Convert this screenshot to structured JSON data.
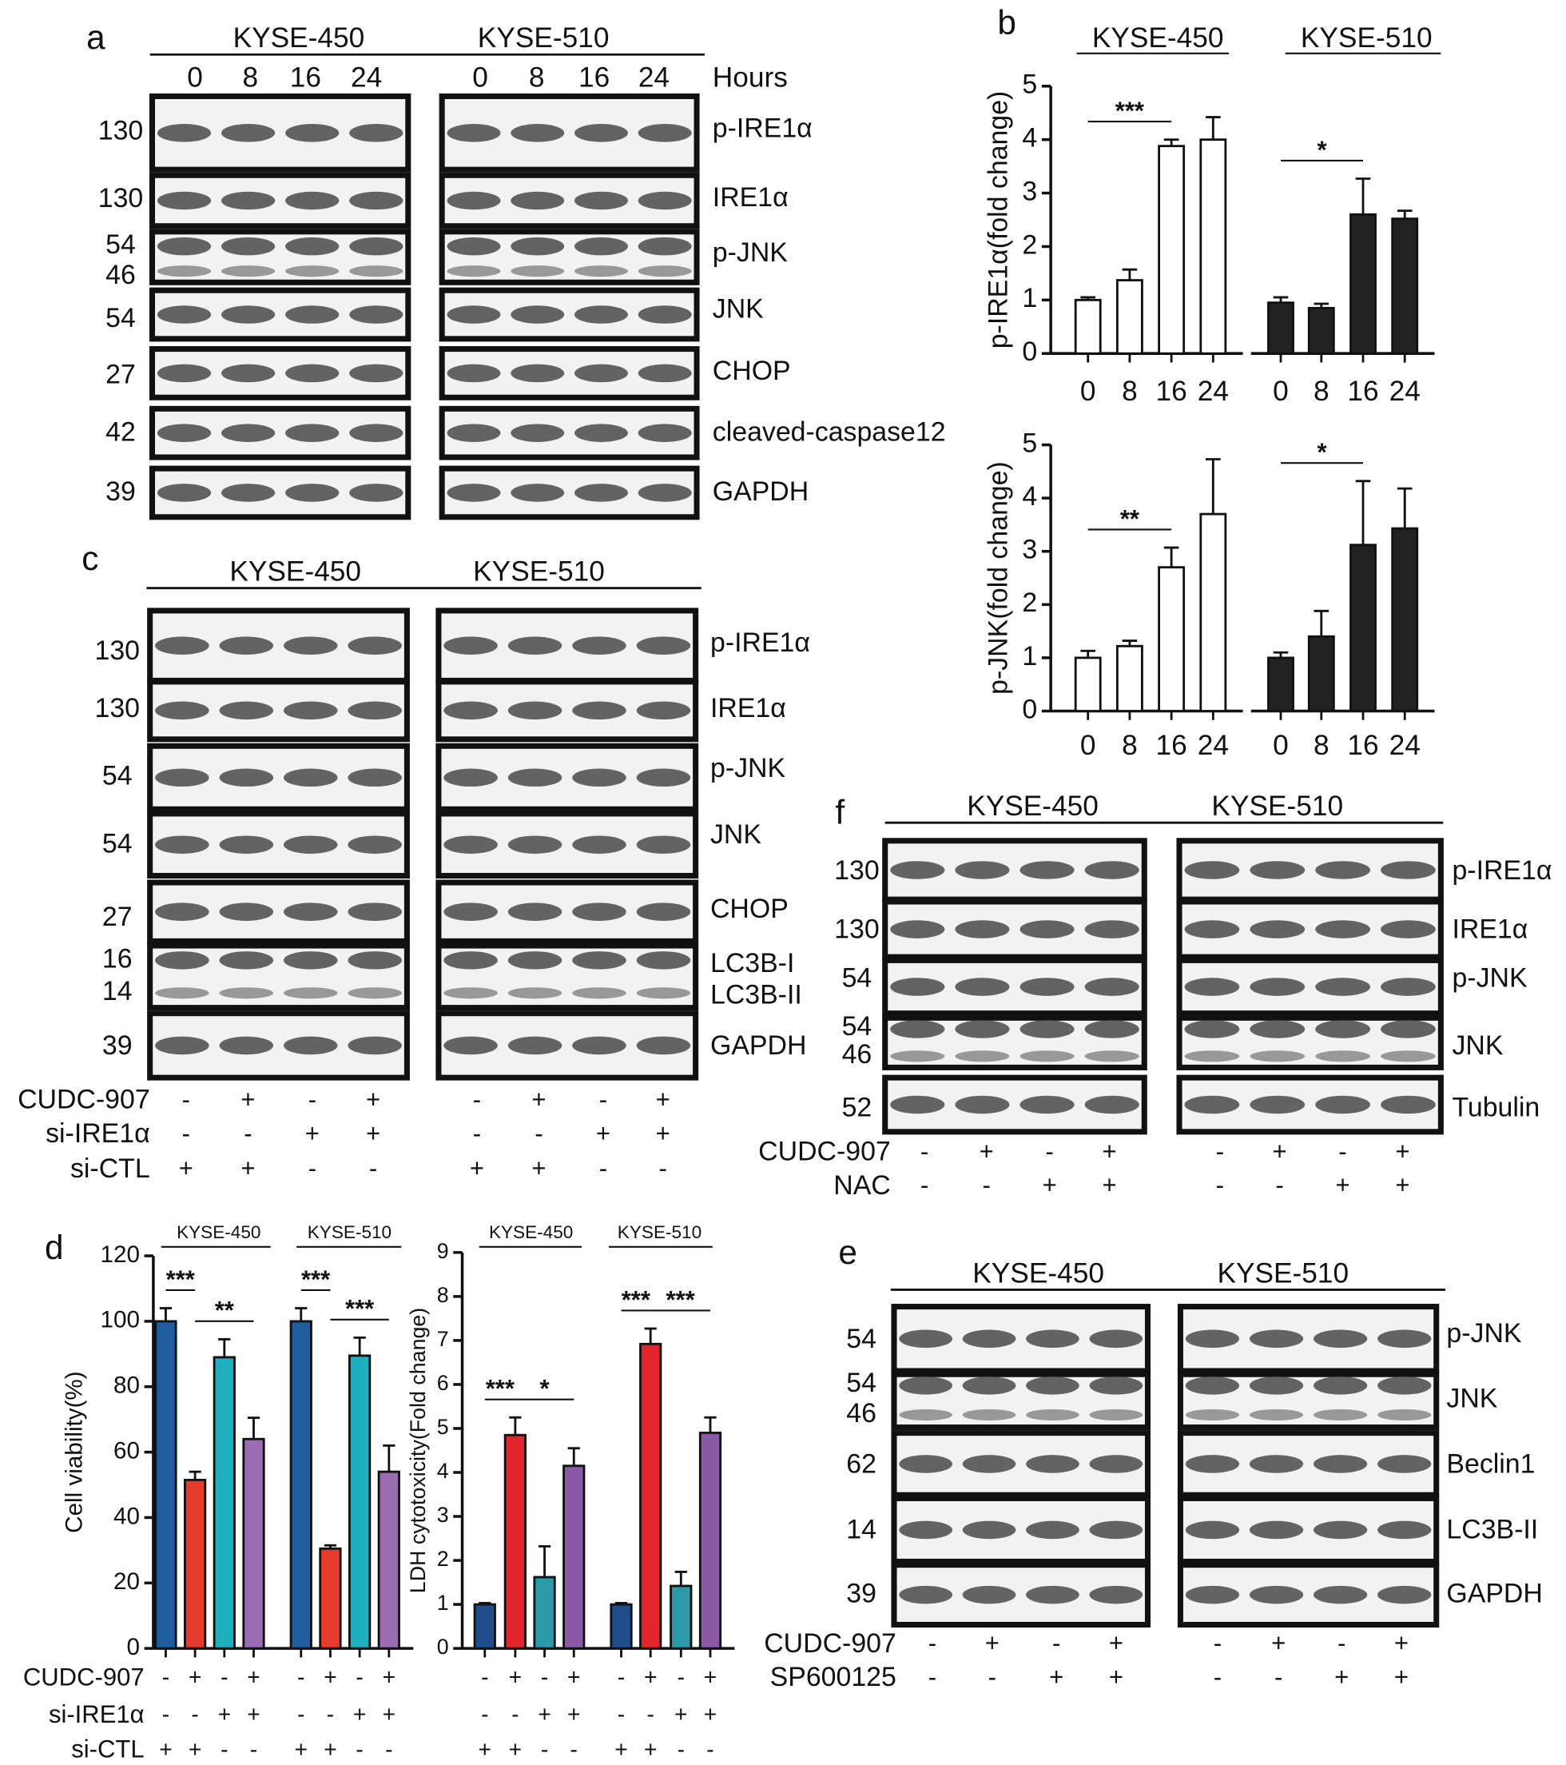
{
  "panels": {
    "a": {
      "label": "a",
      "cell_lines": [
        "KYSE-450",
        "KYSE-510"
      ],
      "lanes": [
        "0",
        "8",
        "16",
        "24"
      ],
      "lanes_title": "Hours",
      "rows": [
        {
          "mw": [
            "130"
          ],
          "names": [
            "p-IRE1α"
          ]
        },
        {
          "mw": [
            "130"
          ],
          "names": [
            "IRE1α"
          ]
        },
        {
          "mw": [
            "54",
            "46"
          ],
          "names": [
            "p-JNK"
          ]
        },
        {
          "mw": [
            "54"
          ],
          "names": [
            "JNK"
          ]
        },
        {
          "mw": [
            "27"
          ],
          "names": [
            "CHOP"
          ]
        },
        {
          "mw": [
            "42"
          ],
          "names": [
            "cleaved-caspase12"
          ]
        },
        {
          "mw": [
            "39"
          ],
          "names": [
            "GAPDH"
          ]
        }
      ]
    },
    "b": {
      "label": "b"
    },
    "c": {
      "label": "c",
      "cell_lines": [
        "KYSE-450",
        "KYSE-510"
      ],
      "rows": [
        {
          "mw": [
            "130"
          ],
          "names": [
            "p-IRE1α"
          ]
        },
        {
          "mw": [
            "130"
          ],
          "names": [
            "IRE1α"
          ]
        },
        {
          "mw": [
            "54"
          ],
          "names": [
            "p-JNK"
          ]
        },
        {
          "mw": [
            "54"
          ],
          "names": [
            "JNK"
          ]
        },
        {
          "mw": [
            "27"
          ],
          "names": [
            "CHOP"
          ]
        },
        {
          "mw": [
            "16",
            "14"
          ],
          "names": [
            "LC3B-I",
            "LC3B-II"
          ]
        },
        {
          "mw": [
            "39"
          ],
          "names": [
            "GAPDH"
          ]
        }
      ],
      "treatments": [
        {
          "name": "CUDC-907",
          "signs": [
            "-",
            "+",
            "-",
            "+",
            "-",
            "+",
            "-",
            "+"
          ]
        },
        {
          "name": "si-IRE1α",
          "signs": [
            "-",
            "-",
            "+",
            "+",
            "-",
            "-",
            "+",
            "+"
          ]
        },
        {
          "name": "si-CTL",
          "signs": [
            "+",
            "+",
            "-",
            "-",
            "+",
            "+",
            "-",
            "-"
          ]
        }
      ]
    },
    "d": {
      "label": "d",
      "treatments": [
        {
          "name": "CUDC-907",
          "signs": [
            "-",
            "+",
            "-",
            "+",
            "-",
            "+",
            "-",
            "+",
            "-",
            "+",
            "-",
            "+",
            "-",
            "+",
            "-",
            "+"
          ]
        },
        {
          "name": "si-IRE1α",
          "signs": [
            "-",
            "-",
            "+",
            "+",
            "-",
            "-",
            "+",
            "+",
            "-",
            "-",
            "+",
            "+",
            "-",
            "-",
            "+",
            "+"
          ]
        },
        {
          "name": "si-CTL",
          "signs": [
            "+",
            "+",
            "-",
            "-",
            "+",
            "+",
            "-",
            "-",
            "+",
            "+",
            "-",
            "-",
            "+",
            "+",
            "-",
            "-"
          ]
        }
      ]
    },
    "e": {
      "label": "e",
      "cell_lines": [
        "KYSE-450",
        "KYSE-510"
      ],
      "rows": [
        {
          "mw": [
            "54"
          ],
          "names": [
            "p-JNK"
          ]
        },
        {
          "mw": [
            "54",
            "46"
          ],
          "names": [
            "JNK"
          ]
        },
        {
          "mw": [
            "62"
          ],
          "names": [
            "Beclin1"
          ]
        },
        {
          "mw": [
            "14"
          ],
          "names": [
            "LC3B-II"
          ]
        },
        {
          "mw": [
            "39"
          ],
          "names": [
            "GAPDH"
          ]
        }
      ],
      "treatments": [
        {
          "name": "CUDC-907",
          "signs": [
            "-",
            "+",
            "-",
            "+",
            "-",
            "+",
            "-",
            "+"
          ]
        },
        {
          "name": "SP600125",
          "signs": [
            "-",
            "-",
            "+",
            "+",
            "-",
            "-",
            "+",
            "+"
          ]
        }
      ]
    },
    "f": {
      "label": "f",
      "cell_lines": [
        "KYSE-450",
        "KYSE-510"
      ],
      "rows": [
        {
          "mw": [
            "130"
          ],
          "names": [
            "p-IRE1α"
          ]
        },
        {
          "mw": [
            "130"
          ],
          "names": [
            "IRE1α"
          ]
        },
        {
          "mw": [
            "54"
          ],
          "names": [
            "p-JNK"
          ]
        },
        {
          "mw": [
            "54",
            "46"
          ],
          "names": [
            "JNK"
          ]
        },
        {
          "mw": [
            "52"
          ],
          "names": [
            "Tubulin"
          ]
        }
      ],
      "treatments": [
        {
          "name": "CUDC-907",
          "signs": [
            "-",
            "+",
            "-",
            "+",
            "-",
            "+",
            "-",
            "+"
          ]
        },
        {
          "name": "NAC",
          "signs": [
            "-",
            "-",
            "+",
            "+",
            "-",
            "-",
            "+",
            "+"
          ]
        }
      ]
    }
  },
  "chart_data": [
    {
      "type": "bar",
      "group_labels": [
        "KYSE-450",
        "KYSE-510"
      ],
      "ylabel": "p-IRE1α(fold change)",
      "categories": [
        "0",
        "8",
        "16",
        "24",
        "0",
        "8",
        "16",
        "24"
      ],
      "values": [
        1.0,
        1.37,
        3.88,
        4.0,
        0.95,
        0.85,
        2.6,
        2.52
      ],
      "errors": [
        0.05,
        0.2,
        0.12,
        0.42,
        0.1,
        0.08,
        0.67,
        0.15
      ],
      "colors": [
        "#ffffff",
        "#ffffff",
        "#ffffff",
        "#ffffff",
        "#222222",
        "#222222",
        "#222222",
        "#222222"
      ],
      "ylim": [
        0,
        5
      ],
      "yticks": [
        0,
        1,
        2,
        3,
        4,
        5
      ],
      "annotations": [
        {
          "text": "***",
          "span": [
            0,
            2
          ]
        },
        {
          "text": "*",
          "span": [
            4,
            6
          ]
        }
      ]
    },
    {
      "type": "bar",
      "ylabel": "p-JNK(fold change)",
      "categories": [
        "0",
        "8",
        "16",
        "24",
        "0",
        "8",
        "16",
        "24"
      ],
      "values": [
        1.0,
        1.22,
        2.7,
        3.7,
        1.0,
        1.4,
        3.12,
        3.43
      ],
      "errors": [
        0.13,
        0.1,
        0.37,
        1.03,
        0.1,
        0.48,
        1.2,
        0.75
      ],
      "colors": [
        "#ffffff",
        "#ffffff",
        "#ffffff",
        "#ffffff",
        "#222222",
        "#222222",
        "#222222",
        "#222222"
      ],
      "ylim": [
        0,
        5
      ],
      "yticks": [
        0,
        1,
        2,
        3,
        4,
        5
      ],
      "annotations": [
        {
          "text": "**",
          "span": [
            0,
            2
          ]
        },
        {
          "text": "*",
          "span": [
            4,
            6
          ]
        }
      ]
    },
    {
      "type": "bar",
      "group_labels": [
        "KYSE-450",
        "KYSE-510"
      ],
      "ylabel": "Cell viability(%)",
      "values": [
        100,
        51.5,
        89,
        64,
        100,
        30.5,
        89.5,
        54
      ],
      "errors": [
        4,
        2.5,
        5.5,
        6.5,
        4,
        1,
        5.5,
        8
      ],
      "colors": [
        "#1f5d9e",
        "#e63b2c",
        "#1fb0c0",
        "#9a6cb2",
        "#1f5d9e",
        "#e63b2c",
        "#1fb0c0",
        "#9a6cb2"
      ],
      "ylim": [
        0,
        120
      ],
      "yticks": [
        0,
        20,
        40,
        60,
        80,
        100,
        120
      ],
      "annotations": [
        {
          "text": "***",
          "span": [
            0,
            1
          ]
        },
        {
          "text": "**",
          "span": [
            1,
            3
          ]
        },
        {
          "text": "***",
          "span": [
            4,
            5
          ]
        },
        {
          "text": "***",
          "span": [
            5,
            7
          ]
        }
      ]
    },
    {
      "type": "bar",
      "group_labels": [
        "KYSE-450",
        "KYSE-510"
      ],
      "ylabel": "LDH cytotoxicity(Fold change)",
      "values": [
        1.0,
        4.85,
        1.62,
        4.15,
        1.0,
        6.92,
        1.42,
        4.9
      ],
      "errors": [
        0.03,
        0.4,
        0.7,
        0.4,
        0.03,
        0.35,
        0.32,
        0.35
      ],
      "colors": [
        "#1f4e8c",
        "#e3262d",
        "#2a9aa8",
        "#8a5aa6",
        "#1f4e8c",
        "#e3262d",
        "#2a9aa8",
        "#8a5aa6"
      ],
      "ylim": [
        0,
        9
      ],
      "yticks": [
        0,
        1,
        2,
        3,
        4,
        5,
        6,
        7,
        8,
        9
      ],
      "annotations": [
        {
          "text": "***",
          "span": [
            0,
            1
          ]
        },
        {
          "text": "*",
          "span": [
            1,
            3
          ]
        },
        {
          "text": "***",
          "span": [
            4,
            5
          ]
        },
        {
          "text": "***",
          "span": [
            5,
            7
          ]
        }
      ]
    }
  ]
}
